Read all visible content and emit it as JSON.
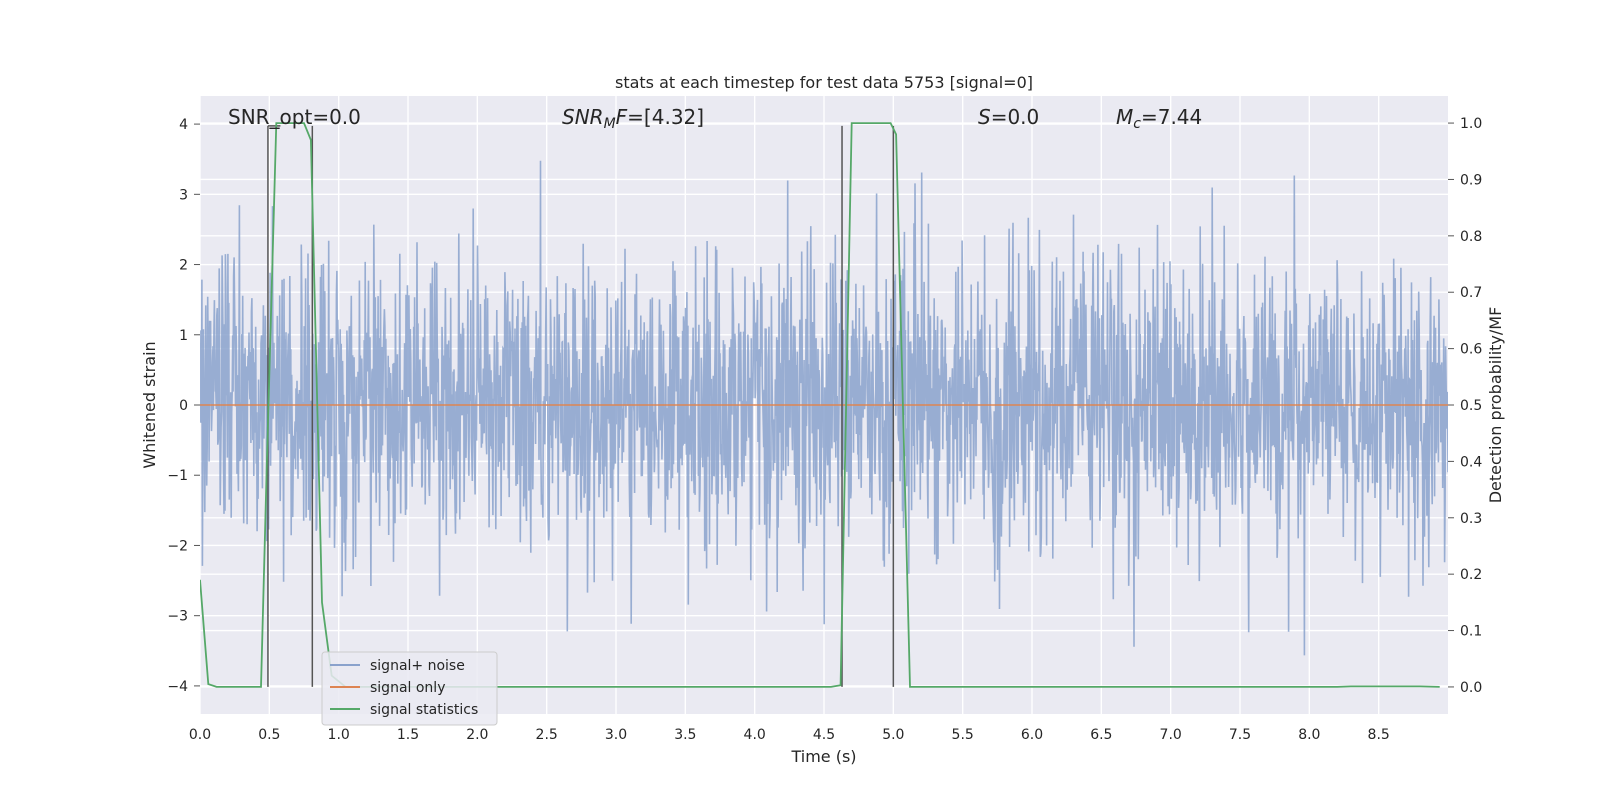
{
  "chart_data": {
    "type": "line",
    "title": "stats at each timestep for test data 5753 [signal=0]",
    "xlabel": "Time (s)",
    "ylabel": "Whitened strain",
    "y2label": "Detection probability/MF",
    "xlim": [
      0.0,
      9.0
    ],
    "ylim": [
      -4.4,
      4.4
    ],
    "y2lim": [
      -0.048,
      1.048
    ],
    "x_ticks": [
      "0.0",
      "0.5",
      "1.0",
      "1.5",
      "2.0",
      "2.5",
      "3.0",
      "3.5",
      "4.0",
      "4.5",
      "5.0",
      "5.5",
      "6.0",
      "6.5",
      "7.0",
      "7.5",
      "8.0",
      "8.5"
    ],
    "y_ticks": [
      "−4",
      "−3",
      "−2",
      "−1",
      "0",
      "1",
      "2",
      "3",
      "4"
    ],
    "y2_ticks": [
      "0.0",
      "0.1",
      "0.2",
      "0.3",
      "0.4",
      "0.5",
      "0.6",
      "0.7",
      "0.8",
      "0.9",
      "1.0"
    ],
    "grid": true,
    "background": "#eaeaf2",
    "legend": {
      "position": "lower-left",
      "entries": [
        {
          "label": "signal+ noise",
          "color": "#8aa2cc"
        },
        {
          "label": "signal only",
          "color": "#dd8452"
        },
        {
          "label": "signal statistics",
          "color": "#55a868"
        }
      ]
    },
    "annotations": {
      "snr_opt": "SNR_opt=0.0",
      "snr_mf_base": "SNR",
      "snr_mf_sub": "M",
      "snr_mf_mid": "F",
      "snr_mf_value": "=[4.32]",
      "s_label": "S",
      "s_value": "=0.0",
      "mc_base": "M",
      "mc_sub": "c",
      "mc_value": "=7.44"
    },
    "series": [
      {
        "name": "signal+ noise",
        "axis": "left",
        "color": "#8aa2cc",
        "description": "dense noise samples, roughly ±2 with spikes to ±3.5",
        "extremes": {
          "max": 3.9,
          "min": -4.0
        }
      },
      {
        "name": "signal only",
        "axis": "left",
        "color": "#dd8452",
        "x": [
          0.0,
          9.0
        ],
        "y": [
          0.0,
          0.0
        ]
      },
      {
        "name": "signal statistics",
        "axis": "right",
        "color": "#55a868",
        "x": [
          0.0,
          0.06,
          0.12,
          0.44,
          0.48,
          0.55,
          0.75,
          0.8,
          0.88,
          0.95,
          1.05,
          4.55,
          4.62,
          4.7,
          4.98,
          5.02,
          5.12,
          8.2,
          8.3,
          8.8,
          8.94
        ],
        "y": [
          0.19,
          0.005,
          0.0,
          0.0,
          0.38,
          1.0,
          1.0,
          0.97,
          0.15,
          0.02,
          0.0,
          0.0,
          0.003,
          1.0,
          1.0,
          0.98,
          0.0,
          0.0,
          0.001,
          0.001,
          0.0
        ]
      }
    ],
    "vlines": [
      {
        "x": 0.49,
        "y2_from": 0.0,
        "y2_to": 0.995
      },
      {
        "x": 0.81,
        "y2_from": 0.0,
        "y2_to": 0.995
      },
      {
        "x": 4.63,
        "y2_from": 0.0,
        "y2_to": 0.995
      },
      {
        "x": 5.0,
        "y2_from": 0.0,
        "y2_to": 0.995
      }
    ],
    "hlines": [
      {
        "x_from": 0.49,
        "x_to": 0.58,
        "y2": 0.995
      }
    ]
  }
}
